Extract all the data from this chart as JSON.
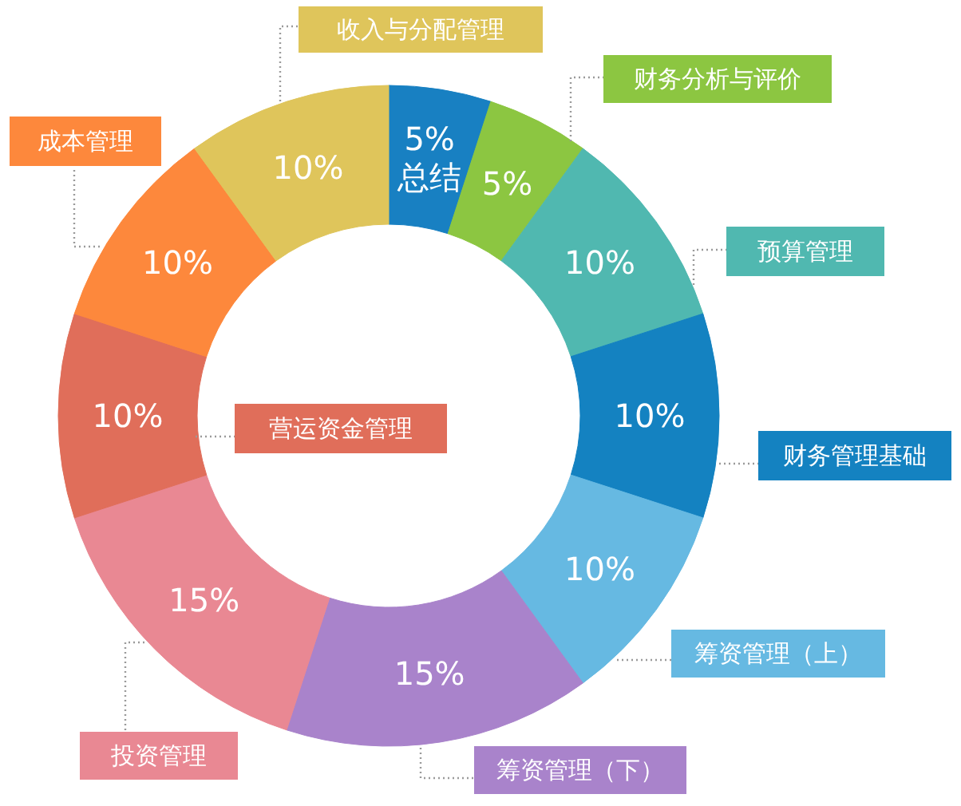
{
  "chart_data": {
    "type": "donut",
    "categories": [
      "总结",
      "财务分析与评价",
      "预算管理",
      "财务管理基础",
      "筹资管理（上）",
      "筹资管理（下）",
      "投资管理",
      "营运资金管理",
      "成本管理",
      "收入与分配管理"
    ],
    "values": [
      5,
      5,
      10,
      10,
      10,
      15,
      15,
      10,
      10,
      10
    ],
    "value_labels": [
      "5%",
      "5%",
      "10%",
      "10%",
      "10%",
      "15%",
      "15%",
      "10%",
      "10%",
      "10%"
    ],
    "colors": [
      "#1880c2",
      "#8cc641",
      "#50b8b0",
      "#1482c1",
      "#66b9e2",
      "#a983cb",
      "#e98893",
      "#e06e5a",
      "#fd883c",
      "#dfc55b"
    ]
  }
}
